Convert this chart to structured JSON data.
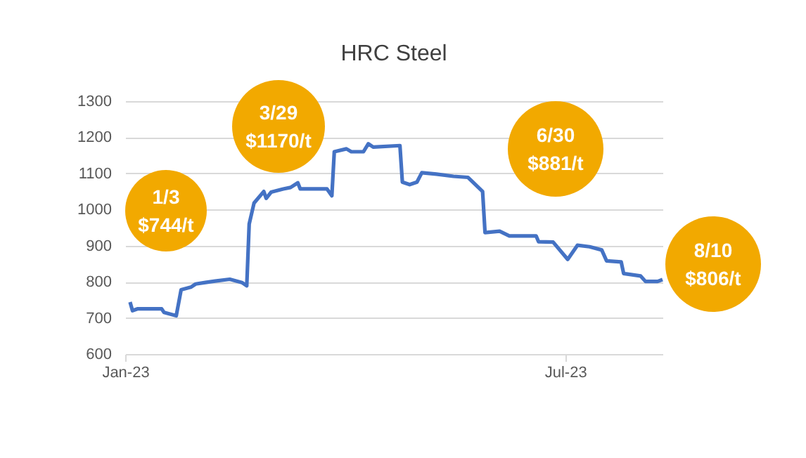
{
  "chart_data": {
    "type": "line",
    "title": "HRC Steel",
    "x": [
      "2023-01-03",
      "2023-01-04",
      "2023-01-06",
      "2023-01-16",
      "2023-01-17",
      "2023-01-22",
      "2023-01-24",
      "2023-01-28",
      "2023-01-30",
      "2023-02-03",
      "2023-02-07",
      "2023-02-13",
      "2023-02-18",
      "2023-02-20",
      "2023-02-21",
      "2023-02-23",
      "2023-02-27",
      "2023-02-28",
      "2023-03-02",
      "2023-03-07",
      "2023-03-10",
      "2023-03-13",
      "2023-03-14",
      "2023-03-25",
      "2023-03-27",
      "2023-03-28",
      "2023-04-02",
      "2023-04-04",
      "2023-04-09",
      "2023-04-11",
      "2023-04-13",
      "2023-04-24",
      "2023-04-25",
      "2023-04-28",
      "2023-05-01",
      "2023-05-03",
      "2023-05-09",
      "2023-05-16",
      "2023-05-22",
      "2023-05-28",
      "2023-05-29",
      "2023-06-04",
      "2023-06-08",
      "2023-06-19",
      "2023-06-20",
      "2023-06-26",
      "2023-07-02",
      "2023-07-06",
      "2023-07-11",
      "2023-07-16",
      "2023-07-18",
      "2023-07-24",
      "2023-07-25",
      "2023-08-01",
      "2023-08-03",
      "2023-08-08",
      "2023-08-10"
    ],
    "series": [
      {
        "color": "#4472c4",
        "values": [
          744,
          720,
          725,
          725,
          715,
          706,
          778,
          785,
          794,
          798,
          802,
          807,
          798,
          789,
          960,
          1018,
          1050,
          1031,
          1048,
          1057,
          1061,
          1074,
          1057,
          1057,
          1038,
          1160,
          1168,
          1160,
          1160,
          1182,
          1173,
          1177,
          1076,
          1069,
          1076,
          1102,
          1098,
          1092,
          1089,
          1050,
          936,
          940,
          927,
          927,
          911,
          910,
          862,
          901,
          897,
          888,
          858,
          855,
          823,
          816,
          801,
          801,
          806
        ]
      }
    ],
    "xlim": [
      "2023-01-01",
      "2023-08-10"
    ],
    "xticks": [
      {
        "value": "2023-01-01",
        "label": "Jan-23"
      },
      {
        "value": "2023-07-01",
        "label": "Jul-23"
      }
    ],
    "ylim": [
      600,
      1300
    ],
    "yticks": [
      600,
      700,
      800,
      900,
      1000,
      1100,
      1200,
      1300
    ],
    "grid": "y",
    "marker": "none",
    "line_style": "solid",
    "annotations": [
      "1/3\n$744/t",
      "3/29\n$1170/t",
      "6/30\n$881/t",
      "8/10\n$806/t"
    ]
  }
}
